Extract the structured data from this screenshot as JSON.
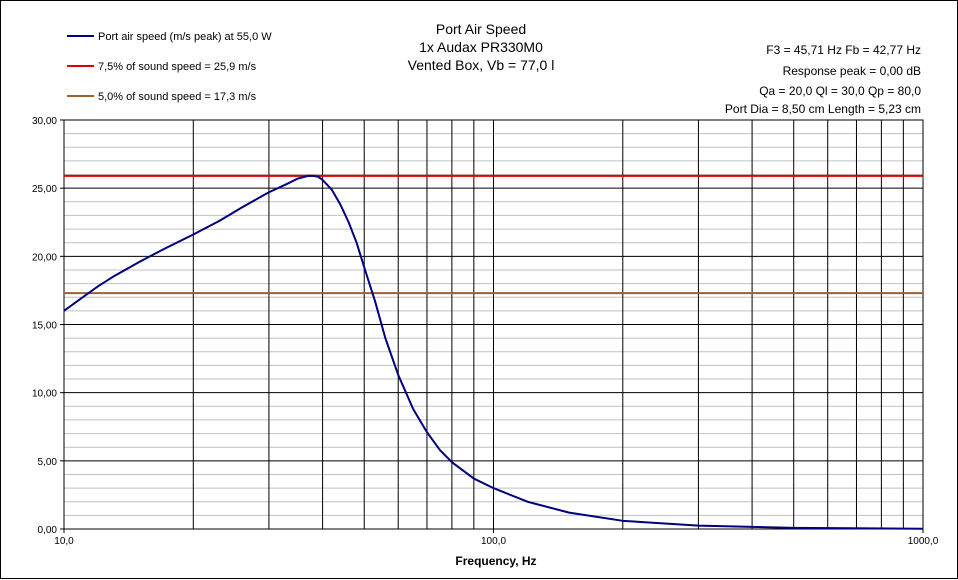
{
  "chart_data": {
    "type": "line",
    "title_lines": [
      "Port Air Speed",
      "1x Audax PR330M0",
      "Vented Box, Vb = 77,0 l"
    ],
    "xlabel": "Frequency, Hz",
    "ylabel": "",
    "x_scale": "log",
    "xlim": [
      10,
      1000
    ],
    "ylim": [
      0,
      30
    ],
    "x_tick_labels": [
      "10,0",
      "100,0",
      "1000,0"
    ],
    "y_tick_labels": [
      "0,00",
      "5,00",
      "10,00",
      "15,00",
      "20,00",
      "25,00",
      "30,00"
    ],
    "grid": true,
    "legend_position": "top-left",
    "info_lines": [
      "F3 = 45,71  Hz   Fb = 42,77  Hz",
      "Response peak = 0,00 dB",
      "Qa = 20,0   Ql = 30,0   Qp = 80,0",
      "Port Dia = 8,50  cm   Length = 5,23  cm"
    ],
    "series": [
      {
        "name": "Port air speed (m/s peak) at 55,0 W",
        "color": "#000080",
        "x": [
          10,
          11,
          12,
          13,
          15,
          17,
          20,
          23,
          26,
          30,
          33,
          35,
          37,
          38,
          39,
          40,
          42,
          44,
          46,
          48,
          50,
          53,
          56,
          60,
          65,
          70,
          75,
          80,
          90,
          100,
          120,
          150,
          200,
          300,
          500,
          1000
        ],
        "y": [
          16.0,
          16.95,
          17.8,
          18.5,
          19.6,
          20.5,
          21.6,
          22.6,
          23.6,
          24.7,
          25.3,
          25.7,
          25.9,
          25.9,
          25.85,
          25.6,
          24.9,
          23.8,
          22.5,
          21.0,
          19.2,
          16.7,
          14.0,
          11.3,
          8.8,
          7.1,
          5.8,
          4.9,
          3.7,
          3.0,
          2.0,
          1.2,
          0.6,
          0.25,
          0.08,
          0.02
        ]
      },
      {
        "name": "7,5% of sound speed = 25,9 m/s",
        "color": "#e00000",
        "x": [
          10,
          1000
        ],
        "y": [
          25.9,
          25.9
        ]
      },
      {
        "name": "5,0% of sound speed = 17,3 m/s",
        "color": "#a0602a",
        "x": [
          10,
          1000
        ],
        "y": [
          17.3,
          17.3
        ]
      }
    ]
  }
}
